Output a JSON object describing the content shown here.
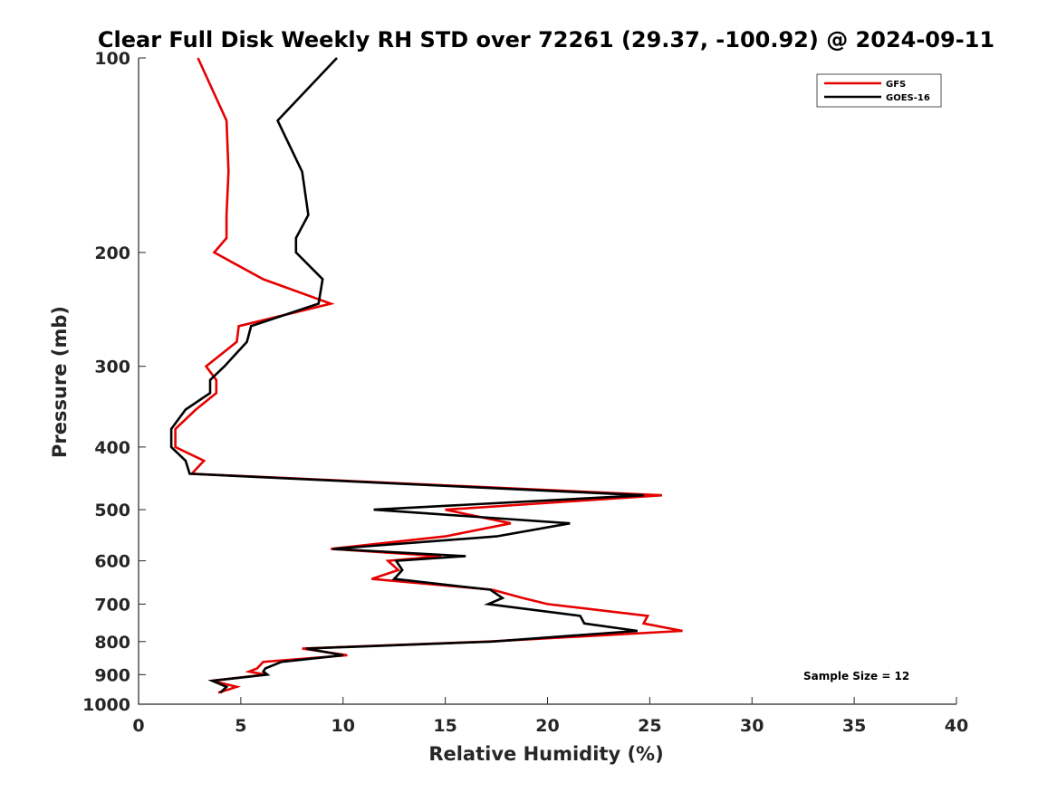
{
  "chart_data": {
    "type": "line",
    "title": "Clear Full Disk Weekly RH STD over 72261 (29.37, -100.92) @ 2024-09-11",
    "xlabel": "Relative Humidity (%)",
    "ylabel": "Pressure (mb)",
    "xlim": [
      0,
      40
    ],
    "ylim": [
      100,
      1000
    ],
    "y_scale": "log",
    "y_reversed": true,
    "grid": false,
    "legend_position": "top-right",
    "x_ticks": [
      "0",
      "5",
      "10",
      "15",
      "20",
      "25",
      "30",
      "35",
      "40"
    ],
    "y_ticks": [
      "100",
      "200",
      "300",
      "400",
      "500",
      "600",
      "700",
      "800",
      "900",
      "1000"
    ],
    "annotation": "Sample Size = 12",
    "series": [
      {
        "name": "GFS",
        "color": "#e60000",
        "points": [
          [
            2.9,
            100
          ],
          [
            4.3,
            125
          ],
          [
            4.4,
            150
          ],
          [
            4.3,
            175
          ],
          [
            4.3,
            190
          ],
          [
            3.7,
            200
          ],
          [
            6.1,
            220
          ],
          [
            9.4,
            240
          ],
          [
            4.9,
            260
          ],
          [
            4.8,
            275
          ],
          [
            3.3,
            300
          ],
          [
            3.8,
            315
          ],
          [
            3.8,
            330
          ],
          [
            2.8,
            350
          ],
          [
            1.8,
            375
          ],
          [
            1.8,
            400
          ],
          [
            3.2,
            420
          ],
          [
            2.6,
            440
          ],
          [
            25.6,
            475
          ],
          [
            15.0,
            500
          ],
          [
            18.2,
            525
          ],
          [
            15.0,
            550
          ],
          [
            9.4,
            575
          ],
          [
            14.8,
            590
          ],
          [
            12.2,
            600
          ],
          [
            12.7,
            620
          ],
          [
            11.4,
            640
          ],
          [
            17.3,
            665
          ],
          [
            18.8,
            685
          ],
          [
            20.0,
            700
          ],
          [
            24.9,
            730
          ],
          [
            24.7,
            750
          ],
          [
            26.6,
            770
          ],
          [
            17.1,
            800
          ],
          [
            8.0,
            820
          ],
          [
            10.2,
            840
          ],
          [
            6.1,
            860
          ],
          [
            5.8,
            880
          ],
          [
            5.4,
            890
          ],
          [
            6.2,
            900
          ],
          [
            3.6,
            920
          ],
          [
            4.8,
            940
          ],
          [
            3.9,
            960
          ]
        ]
      },
      {
        "name": "GOES-16",
        "color": "#000000",
        "points": [
          [
            9.7,
            100
          ],
          [
            6.8,
            125
          ],
          [
            8.0,
            150
          ],
          [
            8.3,
            175
          ],
          [
            7.7,
            190
          ],
          [
            7.7,
            200
          ],
          [
            9.0,
            220
          ],
          [
            8.8,
            240
          ],
          [
            5.5,
            260
          ],
          [
            5.3,
            275
          ],
          [
            4.2,
            300
          ],
          [
            3.5,
            315
          ],
          [
            3.5,
            330
          ],
          [
            2.3,
            350
          ],
          [
            1.6,
            375
          ],
          [
            1.6,
            400
          ],
          [
            2.3,
            420
          ],
          [
            2.5,
            440
          ],
          [
            24.7,
            475
          ],
          [
            11.5,
            500
          ],
          [
            21.1,
            525
          ],
          [
            17.5,
            550
          ],
          [
            9.5,
            575
          ],
          [
            16.0,
            590
          ],
          [
            12.6,
            600
          ],
          [
            12.9,
            620
          ],
          [
            12.5,
            640
          ],
          [
            17.2,
            665
          ],
          [
            17.8,
            685
          ],
          [
            17.1,
            700
          ],
          [
            21.6,
            730
          ],
          [
            21.8,
            750
          ],
          [
            24.4,
            770
          ],
          [
            17.3,
            800
          ],
          [
            8.2,
            820
          ],
          [
            10.0,
            840
          ],
          [
            7.0,
            860
          ],
          [
            6.2,
            880
          ],
          [
            6.1,
            890
          ],
          [
            6.3,
            900
          ],
          [
            3.6,
            920
          ],
          [
            4.3,
            940
          ],
          [
            4.0,
            960
          ]
        ]
      }
    ]
  }
}
